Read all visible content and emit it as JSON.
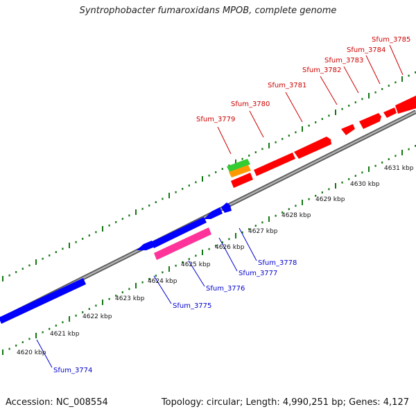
{
  "title": "Syntrophobacter fumaroxidans MPOB, complete genome",
  "footer": {
    "accession": "Accession: NC_008554",
    "summary": "Topology: circular; Length: 4,990,251 bp; Genes: 4,127"
  },
  "colors": {
    "forward_gene": "#ff0000",
    "reverse_gene": "#0000ff",
    "pink_gene": "#ff3399",
    "green_gene": "#33cc33",
    "orange_gene": "#ff9900",
    "backbone": "#888888",
    "tick": "#117711",
    "forward_label": "#cc0000",
    "reverse_label": "#0000cc"
  },
  "scale_labels": [
    "4620 kbp",
    "4621 kbp",
    "4622 kbp",
    "4623 kbp",
    "4624 kbp",
    "4625 kbp",
    "4626 kbp",
    "4627 kbp",
    "4628 kbp",
    "4629 kbp",
    "4630 kbp",
    "4631 kbp"
  ],
  "forward_gene_labels": [
    "Sfum_3779",
    "Sfum_3780",
    "Sfum_3781",
    "Sfum_3782",
    "Sfum_3783",
    "Sfum_3784",
    "Sfum_3785"
  ],
  "reverse_gene_labels": [
    "Sfum_3774",
    "Sfum_3775",
    "Sfum_3776",
    "Sfum_3777",
    "Sfum_3778"
  ]
}
